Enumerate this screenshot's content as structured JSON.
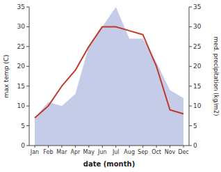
{
  "chart_data": {
    "type": "line",
    "categories": [
      "Jan",
      "Feb",
      "Mar",
      "Apr",
      "May",
      "Jun",
      "Jul",
      "Aug",
      "Sep",
      "Oct",
      "Nov",
      "Dec"
    ],
    "xlabel": "date (month)",
    "ylabel": "max temp (C)",
    "y2label": "med. precipitation (kg/m2)",
    "series": [
      {
        "type": "area",
        "axis": "y2",
        "color": "#c5cce8",
        "values": [
          7,
          11,
          10,
          13,
          25,
          30,
          35,
          27,
          27,
          21,
          14,
          12
        ]
      },
      {
        "type": "line",
        "color": "#c0392b",
        "values": [
          7,
          10,
          15,
          19,
          25,
          30,
          30,
          29,
          28,
          20,
          9,
          8
        ]
      }
    ],
    "ylim": [
      0,
      35
    ],
    "yticks": [
      0,
      5,
      10,
      15,
      20,
      25,
      30,
      35
    ],
    "y2lim": [
      0,
      35
    ],
    "y2ticks": [
      0,
      5,
      10,
      15,
      20,
      25,
      30,
      35
    ],
    "grid": false
  }
}
